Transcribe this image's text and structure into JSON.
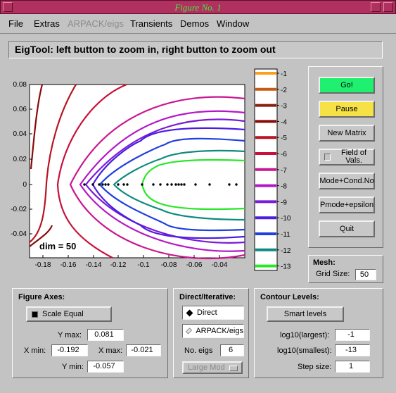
{
  "window": {
    "title": "Figure No. 1"
  },
  "menu": [
    "File",
    "Extras",
    "ARPACK/eigs",
    "Transients",
    "Demos",
    "Window"
  ],
  "status_text": "EigTool: left button to zoom in, right button to zoom out",
  "plot": {
    "x_ticks": [
      "-0.18",
      "-0.16",
      "-0.14",
      "-0.12",
      "-0.1",
      "-0.08",
      "-0.06",
      "-0.04"
    ],
    "y_ticks": [
      "0.08",
      "0.06",
      "0.04",
      "0.02",
      "0",
      "-0.02",
      "-0.04"
    ],
    "dim_label": "dim = 50"
  },
  "colorbar": {
    "labels": [
      "-1",
      "-2",
      "-3",
      "-4",
      "-5",
      "-6",
      "-7",
      "-8",
      "-9",
      "-10",
      "-11",
      "-12",
      "-13"
    ],
    "colors": [
      "#ff9e1a",
      "#c85a10",
      "#8a1e10",
      "#8a0a0a",
      "#b81422",
      "#c8103a",
      "#c81890",
      "#b416c8",
      "#7a1ad8",
      "#4a1ee0",
      "#2040e0",
      "#108a80",
      "#28e828"
    ]
  },
  "buttons": {
    "go": "Go!",
    "pause": "Pause",
    "new_matrix": "New Matrix",
    "field_of_vals": "Field of Vals.",
    "mode_cond": "Mode+Cond.No",
    "pmode_eps": "Pmode+epsilon",
    "quit": "Quit"
  },
  "mesh": {
    "title": "Mesh:",
    "grid_size_label": "Grid Size:",
    "grid_size": "50"
  },
  "figure_axes": {
    "title": "Figure Axes:",
    "scale_equal": "Scale Equal",
    "ymax_label": "Y max:",
    "ymax": "0.081",
    "xmin_label": "X min:",
    "xmin": "-0.192",
    "xmax_label": "X max:",
    "xmax": "-0.021",
    "ymin_label": "Y min:",
    "ymin": "-0.057"
  },
  "direct_iterative": {
    "title": "Direct/Iterative:",
    "direct": "Direct",
    "arpack": "ARPACK/eigs",
    "no_eigs_label": "No. eigs",
    "no_eigs": "6",
    "mode": "Large Mod"
  },
  "contour_levels": {
    "title": "Contour Levels:",
    "smart_levels": "Smart  levels",
    "largest_label": "log10(largest):",
    "largest": "-1",
    "smallest_label": "log10(smallest):",
    "smallest": "-13",
    "step_label": "Step size:",
    "step": "1"
  }
}
